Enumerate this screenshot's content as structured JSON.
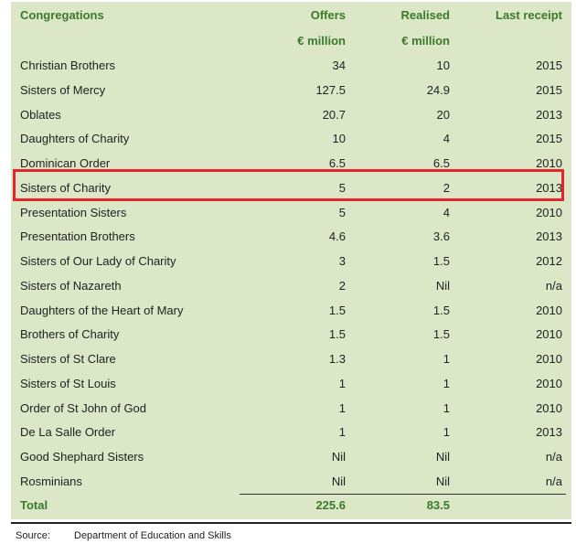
{
  "table": {
    "headers": [
      "Congregations",
      "Offers",
      "Realised",
      "Last receipt"
    ],
    "units": [
      "",
      "€ million",
      "€ million",
      ""
    ],
    "rows": [
      [
        "Christian Brothers",
        "34",
        "10",
        "2015"
      ],
      [
        "Sisters of Mercy",
        "127.5",
        "24.9",
        "2015"
      ],
      [
        "Oblates",
        "20.7",
        "20",
        "2013"
      ],
      [
        "Daughters of Charity",
        "10",
        "4",
        "2015"
      ],
      [
        "Dominican Order",
        "6.5",
        "6.5",
        "2010"
      ],
      [
        "Sisters of Charity",
        "5",
        "2",
        "2013"
      ],
      [
        "Presentation Sisters",
        "5",
        "4",
        "2010"
      ],
      [
        "Presentation Brothers",
        "4.6",
        "3.6",
        "2013"
      ],
      [
        "Sisters of Our Lady of Charity",
        "3",
        "1.5",
        "2012"
      ],
      [
        "Sisters of Nazareth",
        "2",
        "Nil",
        "n/a"
      ],
      [
        "Daughters of the Heart of Mary",
        "1.5",
        "1.5",
        "2010"
      ],
      [
        "Brothers of Charity",
        "1.5",
        "1.5",
        "2010"
      ],
      [
        "Sisters of St Clare",
        "1.3",
        "1",
        "2010"
      ],
      [
        "Sisters of St Louis",
        "1",
        "1",
        "2010"
      ],
      [
        "Order of St John of God",
        "1",
        "1",
        "2010"
      ],
      [
        "De La Salle Order",
        "1",
        "1",
        "2013"
      ],
      [
        "Good Shephard Sisters",
        "Nil",
        "Nil",
        "n/a"
      ],
      [
        "Rosminians",
        "Nil",
        "Nil",
        "n/a"
      ]
    ],
    "total": [
      "Total",
      "225.6",
      "83.5",
      ""
    ],
    "highlighted_row": "Sisters of Charity"
  },
  "source": {
    "label": "Source:",
    "text": "Department of Education and Skills"
  },
  "colors": {
    "panel_bg": "#dbe7c7",
    "header_text": "#3b7a2a",
    "highlight_border": "#e4262b"
  }
}
